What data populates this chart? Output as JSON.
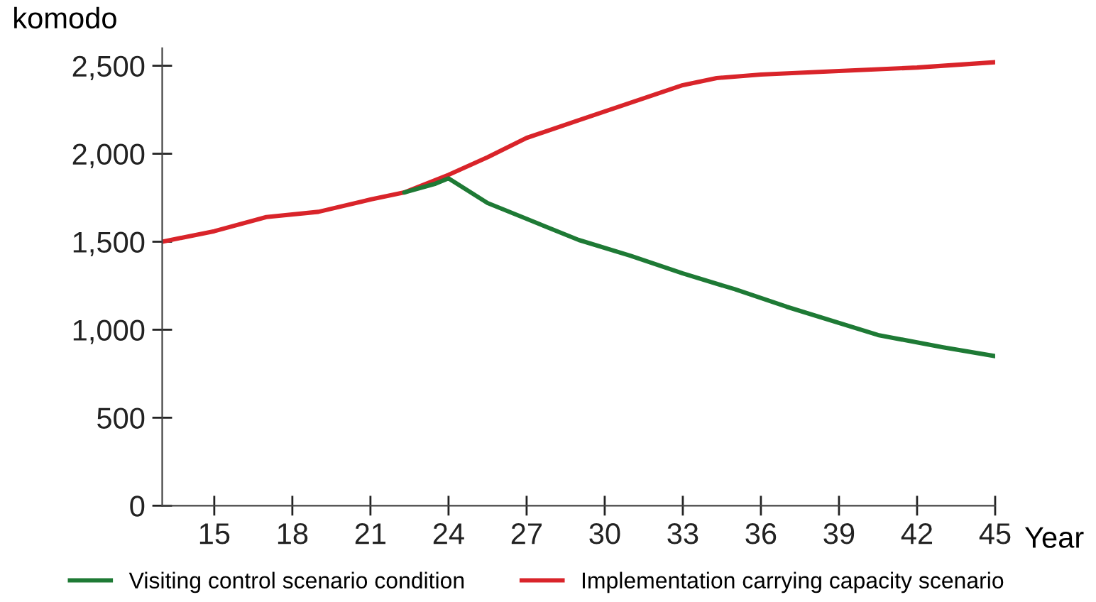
{
  "chart_data": {
    "type": "line",
    "xlabel": "Year",
    "ylabel": "komodo",
    "xlim": [
      13,
      45
    ],
    "ylim": [
      0,
      2600
    ],
    "xticks": [
      15,
      18,
      21,
      24,
      27,
      30,
      33,
      36,
      39,
      42,
      45
    ],
    "yticks": [
      {
        "value": 0,
        "label": "0"
      },
      {
        "value": 500,
        "label": "500"
      },
      {
        "value": 1000,
        "label": "1,000"
      },
      {
        "value": 1500,
        "label": "1,500"
      },
      {
        "value": 2000,
        "label": "2,000"
      },
      {
        "value": 2500,
        "label": "2,500"
      }
    ],
    "grid": false,
    "legend": "bottom",
    "marker": "none",
    "line_style": "solid",
    "series": [
      {
        "name": "Visiting control scenario condition",
        "color": "#1e7a35",
        "x": [
          22.3,
          23.5,
          24,
          25.5,
          27,
          29,
          31,
          33,
          35,
          37,
          40.5,
          43,
          45
        ],
        "values": [
          1780,
          1830,
          1860,
          1720,
          1630,
          1510,
          1420,
          1320,
          1230,
          1130,
          970,
          900,
          850
        ]
      },
      {
        "name": "Implementation carrying capacity scenario",
        "color": "#d9242a",
        "x": [
          13,
          15,
          17,
          19,
          21,
          22.3,
          24,
          25.5,
          27,
          29,
          31,
          33,
          34.3,
          36,
          39,
          42,
          45
        ],
        "values": [
          1500,
          1560,
          1640,
          1670,
          1740,
          1780,
          1880,
          1980,
          2090,
          2190,
          2290,
          2390,
          2430,
          2450,
          2470,
          2490,
          2520
        ]
      }
    ]
  }
}
